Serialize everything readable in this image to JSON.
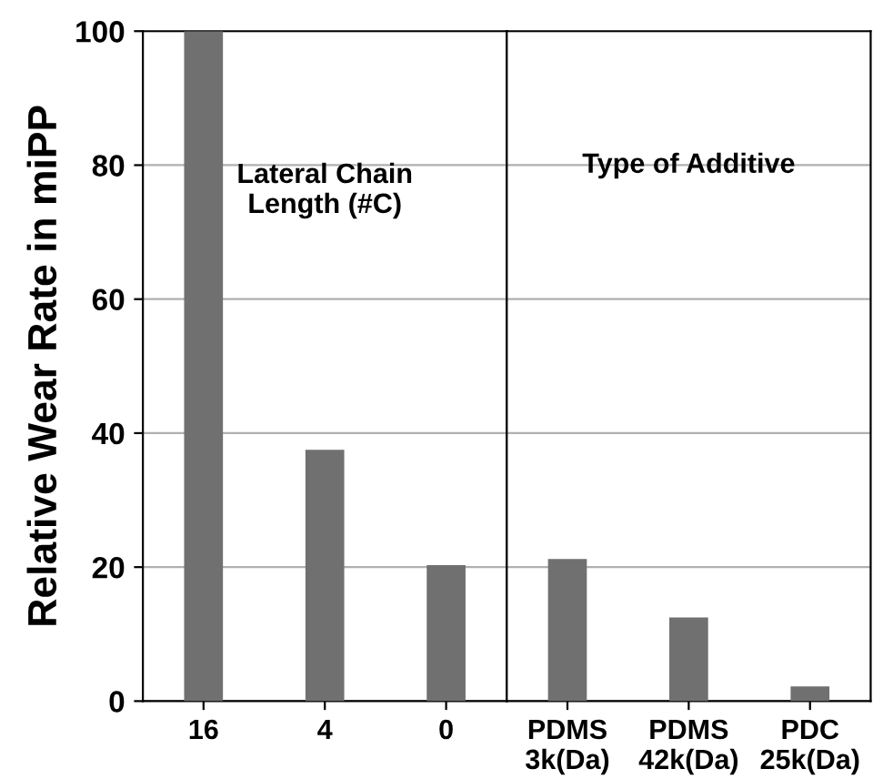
{
  "chart_data": [
    {
      "type": "bar",
      "ylabel": "Relative Wear Rate in miPP",
      "categories": [
        "16",
        "4",
        "0"
      ],
      "values": [
        100,
        37.5,
        20.3
      ],
      "color": "#707070",
      "ylim": [
        0,
        100
      ],
      "yticks": [
        0,
        20,
        40,
        60,
        80,
        100
      ],
      "grid": "y",
      "annotations": [
        "Lateral Chain\nLength (#C)"
      ]
    },
    {
      "type": "bar",
      "categories": [
        "PDMS\n3k(Da)",
        "PDMS\n42k(Da)",
        "PDC\n25k(Da)"
      ],
      "values": [
        21.2,
        12.5,
        2.2
      ],
      "color": "#707070",
      "ylim": [
        0,
        100
      ],
      "yticks": [
        0,
        20,
        40,
        60,
        80,
        100
      ],
      "grid": "y",
      "tick_labels": "x",
      "annotations": [
        "Type of Additive"
      ]
    }
  ]
}
